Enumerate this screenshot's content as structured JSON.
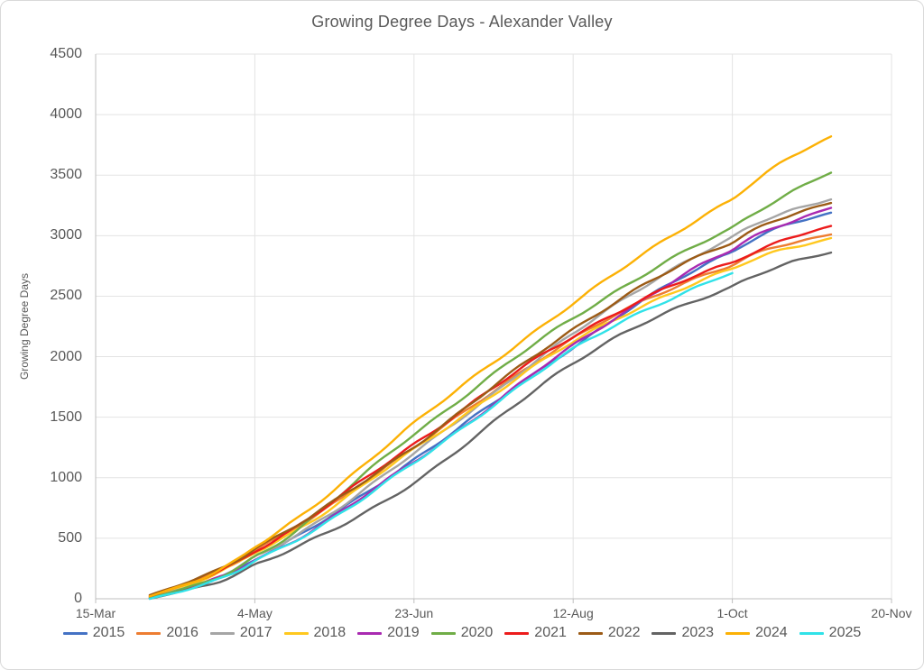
{
  "chart": {
    "title": "Growing Degree Days - Alexander Valley",
    "y_axis_title": "Growing Degree Days"
  },
  "chart_data": {
    "type": "line",
    "title": "Growing Degree Days - Alexander Valley",
    "xlabel": "",
    "ylabel": "Growing Degree Days",
    "ylim": [
      0,
      4500
    ],
    "ytick_step": 500,
    "grid": true,
    "legend_position": "bottom",
    "y_tick_labels": [
      "0",
      "500",
      "1000",
      "1500",
      "2000",
      "2500",
      "3000",
      "3500",
      "4000",
      "4500"
    ],
    "x_tick_labels": [
      "15-Mar",
      "4-May",
      "23-Jun",
      "12-Aug",
      "1-Oct",
      "20-Nov"
    ],
    "x_tick_days": [
      0,
      50,
      100,
      150,
      200,
      250
    ],
    "x_day_range": [
      0,
      250
    ],
    "anchor_dates": [
      "1-Apr",
      "4-May",
      "23-Jun",
      "12-Aug",
      "1-Oct",
      "1-Nov"
    ],
    "series": [
      {
        "name": "2015",
        "color": "#4472C4",
        "days": [
          17,
          50,
          100,
          150,
          200,
          231
        ],
        "values": [
          10,
          330,
          1150,
          2080,
          2870,
          3190
        ]
      },
      {
        "name": "2016",
        "color": "#ED7D31",
        "days": [
          17,
          50,
          100,
          150,
          200,
          231
        ],
        "values": [
          30,
          400,
          1250,
          2150,
          2760,
          3010
        ]
      },
      {
        "name": "2017",
        "color": "#A5A5A5",
        "days": [
          17,
          50,
          100,
          150,
          200,
          231
        ],
        "values": [
          10,
          340,
          1200,
          2190,
          2980,
          3300
        ]
      },
      {
        "name": "2018",
        "color": "#FFC81E",
        "days": [
          17,
          50,
          100,
          150,
          200,
          231
        ],
        "values": [
          20,
          380,
          1230,
          2120,
          2720,
          2980
        ]
      },
      {
        "name": "2019",
        "color": "#A92AB1",
        "days": [
          17,
          50,
          100,
          150,
          200,
          231
        ],
        "values": [
          5,
          320,
          1130,
          2090,
          2880,
          3230
        ]
      },
      {
        "name": "2020",
        "color": "#70AD47",
        "days": [
          17,
          50,
          100,
          150,
          200,
          231
        ],
        "values": [
          5,
          350,
          1360,
          2320,
          3060,
          3520
        ]
      },
      {
        "name": "2021",
        "color": "#EC1C1C",
        "days": [
          17,
          50,
          100,
          150,
          200,
          231
        ],
        "values": [
          20,
          400,
          1280,
          2170,
          2780,
          3080
        ]
      },
      {
        "name": "2022",
        "color": "#9C5B16",
        "days": [
          17,
          50,
          100,
          150,
          200,
          231
        ],
        "values": [
          30,
          420,
          1260,
          2230,
          2950,
          3270
        ]
      },
      {
        "name": "2023",
        "color": "#636363",
        "days": [
          17,
          50,
          100,
          150,
          200,
          231
        ],
        "values": [
          0,
          280,
          960,
          1950,
          2580,
          2860
        ]
      },
      {
        "name": "2024",
        "color": "#FCB105",
        "days": [
          17,
          50,
          100,
          150,
          200,
          231
        ],
        "values": [
          20,
          430,
          1450,
          2440,
          3300,
          3820
        ]
      },
      {
        "name": "2025",
        "color": "#30E2E8",
        "days": [
          17,
          50,
          100,
          150,
          200
        ],
        "values": [
          0,
          310,
          1120,
          2060,
          2690
        ]
      }
    ]
  }
}
